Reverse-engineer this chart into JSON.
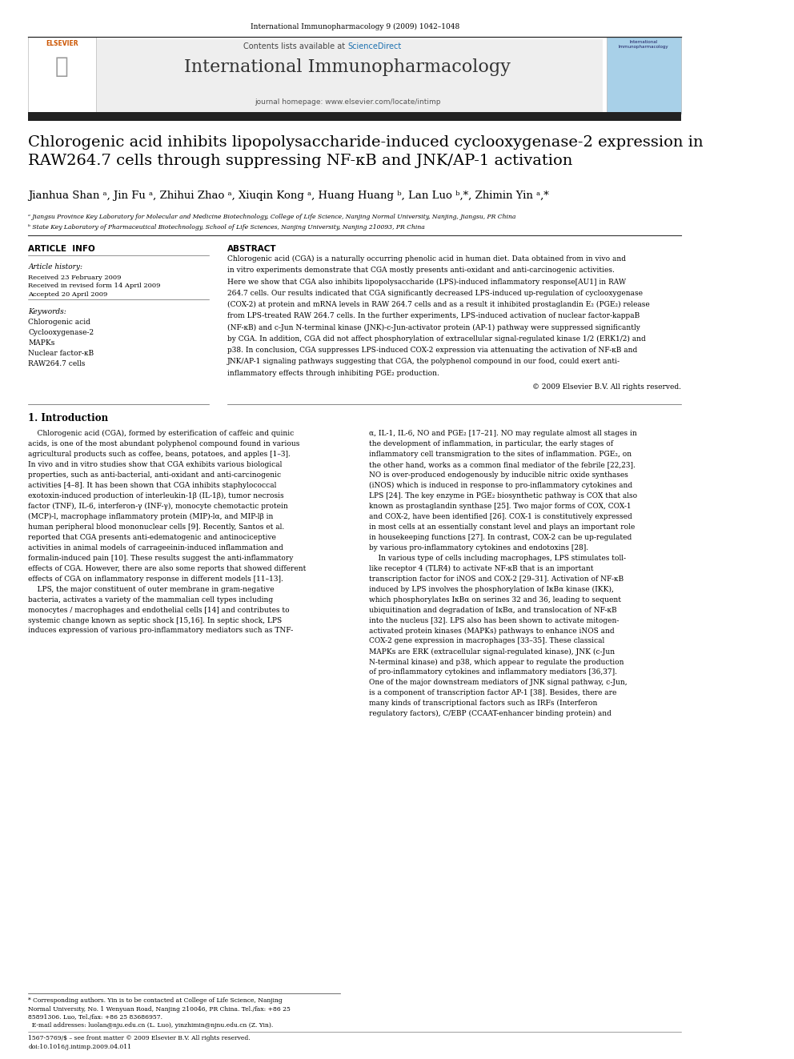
{
  "page_width": 9.92,
  "page_height": 13.23,
  "bg_color": "#ffffff",
  "header_journal_line": "International Immunopharmacology 9 (2009) 1042–1048",
  "journal_name": "International Immunopharmacology",
  "journal_homepage": "journal homepage: www.elsevier.com/locate/intimp",
  "contents_line": "Contents lists available at ScienceDirect",
  "title": "Chlorogenic acid inhibits lipopolysaccharide-induced cyclooxygenase-2 expression in\nRAW264.7 cells through suppressing NF-κB and JNK/AP-1 activation",
  "authors": "Jianhua Shan ᵃ, Jin Fu ᵃ, Zhihui Zhao ᵃ, Xiuqin Kong ᵃ, Huang Huang ᵇ, Lan Luo ᵇ,*, Zhimin Yin ᵃ,*",
  "affil_a": "ᵃ Jiangsu Province Key Laboratory for Molecular and Medicine Biotechnology, College of Life Science, Nanjing Normal University, Nanjing, Jiangsu, PR China",
  "affil_b": "ᵇ State Key Laboratory of Pharmaceutical Biotechnology, School of Life Sciences, Nanjing University, Nanjing 210093, PR China",
  "article_info_header": "ARTICLE  INFO",
  "article_history_label": "Article history:",
  "received": "Received 23 February 2009",
  "received_revised": "Received in revised form 14 April 2009",
  "accepted": "Accepted 20 April 2009",
  "keywords_label": "Keywords:",
  "keywords": [
    "Chlorogenic acid",
    "Cyclooxygenase-2",
    "MAPKs",
    "Nuclear factor-κB",
    "RAW264.7 cells"
  ],
  "abstract_header": "ABSTRACT",
  "copyright": "© 2009 Elsevier B.V. All rights reserved.",
  "intro_header": "1. Introduction",
  "footer_line1": "1567-5769/$ – see front matter © 2009 Elsevier B.V. All rights reserved.",
  "footer_line2": "doi:10.1016/j.intimp.2009.04.011",
  "header_bg": "#eeeeee",
  "title_bar_color": "#2c2c2c",
  "sciencedirect_color": "#1a6faf",
  "separator_color": "#333333",
  "abstract_lines": [
    "Chlorogenic acid (CGA) is a naturally occurring phenolic acid in human diet. Data obtained from in vivo and",
    "in vitro experiments demonstrate that CGA mostly presents anti-oxidant and anti-carcinogenic activities.",
    "Here we show that CGA also inhibits lipopolysaccharide (LPS)-induced inflammatory response[AU1] in RAW",
    "264.7 cells. Our results indicated that CGA significantly decreased LPS-induced up-regulation of cyclooxygenase",
    "(COX-2) at protein and mRNA levels in RAW 264.7 cells and as a result it inhibited prostaglandin E₂ (PGE₂) release",
    "from LPS-treated RAW 264.7 cells. In the further experiments, LPS-induced activation of nuclear factor-kappaB",
    "(NF-κB) and c-Jun N-terminal kinase (JNK)-c-Jun-activator protein (AP-1) pathway were suppressed significantly",
    "by CGA. In addition, CGA did not affect phosphorylation of extracellular signal-regulated kinase 1/2 (ERK1/2) and",
    "p38. In conclusion, CGA suppresses LPS-induced COX-2 expression via attenuating the activation of NF-κB and",
    "JNK/AP-1 signaling pathways suggesting that CGA, the polyphenol compound in our food, could exert anti-",
    "inflammatory effects through inhibiting PGE₂ production."
  ],
  "intro_left_lines": [
    "    Chlorogenic acid (CGA), formed by esterification of caffeic and quinic",
    "acids, is one of the most abundant polyphenol compound found in various",
    "agricultural products such as coffee, beans, potatoes, and apples [1–3].",
    "In vivo and in vitro studies show that CGA exhibits various biological",
    "properties, such as anti-bacterial, anti-oxidant and anti-carcinogenic",
    "activities [4–8]. It has been shown that CGA inhibits staphylococcal",
    "exotoxin-induced production of interleukin-1β (IL-1β), tumor necrosis",
    "factor (TNF), IL-6, interferon-γ (INF-γ), monocyte chemotactic protein",
    "(MCP)-l, macrophage inflammatory protein (MIP)-lα, and MIP-lβ in",
    "human peripheral blood mononuclear cells [9]. Recently, Santos et al.",
    "reported that CGA presents anti-edematogenic and antinociceptive",
    "activities in animal models of carrageeinin-induced inflammation and",
    "formalin-induced pain [10]. These results suggest the anti-inflammatory",
    "effects of CGA. However, there are also some reports that showed different",
    "effects of CGA on inflammatory response in different models [11–13].",
    "    LPS, the major constituent of outer membrane in gram-negative",
    "bacteria, activates a variety of the mammalian cell types including",
    "monocytes / macrophages and endothelial cells [14] and contributes to",
    "systemic change known as septic shock [15,16]. In septic shock, LPS",
    "induces expression of various pro-inflammatory mediators such as TNF-"
  ],
  "intro_right_lines": [
    "α, IL-1, IL-6, NO and PGE₂ [17–21]. NO may regulate almost all stages in",
    "the development of inflammation, in particular, the early stages of",
    "inflammatory cell transmigration to the sites of inflammation. PGE₂, on",
    "the other hand, works as a common final mediator of the febrile [22,23].",
    "NO is over-produced endogenously by inducible nitric oxide synthases",
    "(iNOS) which is induced in response to pro-inflammatory cytokines and",
    "LPS [24]. The key enzyme in PGE₂ biosynthetic pathway is COX that also",
    "known as prostaglandin synthase [25]. Two major forms of COX, COX-1",
    "and COX-2, have been identified [26]. COX-1 is constitutively expressed",
    "in most cells at an essentially constant level and plays an important role",
    "in housekeeping functions [27]. In contrast, COX-2 can be up-regulated",
    "by various pro-inflammatory cytokines and endotoxins [28].",
    "    In various type of cells including macrophages, LPS stimulates toll-",
    "like receptor 4 (TLR4) to activate NF-κB that is an important",
    "transcription factor for iNOS and COX-2 [29–31]. Activation of NF-κB",
    "induced by LPS involves the phosphorylation of IκBα kinase (IKK),",
    "which phosphorylates IκBα on serines 32 and 36, leading to sequent",
    "ubiquitination and degradation of IκBα, and translocation of NF-κB",
    "into the nucleus [32]. LPS also has been shown to activate mitogen-",
    "activated protein kinases (MAPKs) pathways to enhance iNOS and",
    "COX-2 gene expression in macrophages [33–35]. These classical",
    "MAPKs are ERK (extracellular signal-regulated kinase), JNK (c-Jun",
    "N-terminal kinase) and p38, which appear to regulate the production",
    "of pro-inflammatory cytokines and inflammatory mediators [36,37].",
    "One of the major downstream mediators of JNK signal pathway, c-Jun,",
    "is a component of transcription factor AP-1 [38]. Besides, there are",
    "many kinds of transcriptional factors such as IRFs (Interferon",
    "regulatory factors), C/EBP (CCAAT-enhancer binding protein) and"
  ],
  "footnote_lines": [
    "* Corresponding authors. Yin is to be contacted at College of Life Science, Nanjing",
    "Normal University, No. 1 Wenyuan Road, Nanjing 210046, PR China. Tel./fax: +86 25",
    "85891306. Luo, Tel./fax: +86 25 83686957.",
    "  E-mail addresses: luolan@nju.edu.cn (L. Luo), yinzhimin@njnu.edu.cn (Z. Yin)."
  ]
}
